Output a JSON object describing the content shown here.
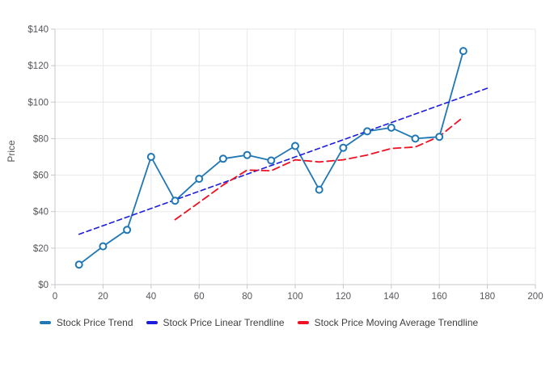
{
  "chart_data": {
    "type": "line",
    "title": "",
    "xlabel": "",
    "ylabel": "Price",
    "xlim": [
      0,
      200
    ],
    "ylim": [
      0,
      140
    ],
    "x_ticks": [
      0,
      20,
      40,
      60,
      80,
      100,
      120,
      140,
      160,
      180,
      200
    ],
    "y_ticks": [
      0,
      20,
      40,
      60,
      80,
      100,
      120,
      140
    ],
    "y_tick_prefix": "$",
    "grid": true,
    "legend_position": "bottom",
    "series": [
      {
        "name": "Stock Price Trend",
        "color": "#1f77b4",
        "dash": "solid",
        "line_width": 1.8,
        "markers": true,
        "x": [
          10,
          20,
          30,
          40,
          50,
          60,
          70,
          80,
          90,
          100,
          110,
          120,
          130,
          140,
          150,
          160,
          170
        ],
        "y": [
          11,
          21,
          30,
          70,
          46,
          58,
          69,
          71,
          68,
          76,
          52,
          75,
          84,
          86,
          80,
          81,
          128
        ]
      },
      {
        "name": "Stock Price Linear Trendline",
        "color": "#1c1cdf",
        "dash": "dashed",
        "line_width": 1.6,
        "markers": false,
        "x": [
          10,
          180
        ],
        "y": [
          27.6,
          107.6
        ]
      },
      {
        "name": "Stock Price Moving Average Trendline",
        "color": "#ee1122",
        "dash": "dashed",
        "line_width": 1.8,
        "markers": false,
        "x": [
          50,
          60,
          70,
          80,
          90,
          100,
          110,
          120,
          130,
          140,
          150,
          160,
          170
        ],
        "y": [
          35.6,
          45,
          54.6,
          62.8,
          62.4,
          68.4,
          67.2,
          68.4,
          71,
          74.6,
          75.4,
          81.2,
          91.8
        ]
      }
    ],
    "styles": {
      "background": "#ffffff",
      "grid_color": "#e8e8e8",
      "axis_color": "#c4c7cc",
      "tick_label_color": "#54565a",
      "legend_text_color": "#3f3f3f",
      "marker_fill": "#ffffff"
    }
  }
}
